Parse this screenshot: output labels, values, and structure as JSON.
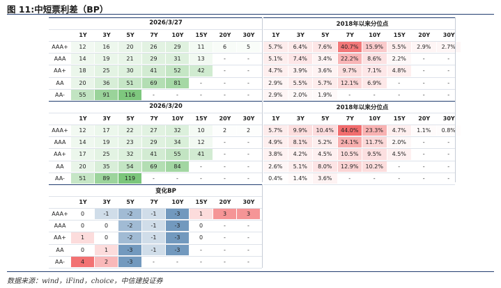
{
  "figure_title": "图 11:中短票利差（BP）",
  "source": "数据来源：wind，iFind，choice，中信建投证券",
  "columns": [
    "1Y",
    "3Y",
    "5Y",
    "7Y",
    "10Y",
    "15Y",
    "20Y",
    "30Y"
  ],
  "rows": [
    "AAA+",
    "AAA",
    "AA+",
    "AA",
    "AA-"
  ],
  "blocks": [
    {
      "date": "2026/3/27",
      "pct_title": "2018年以来分位点",
      "spreads": [
        [
          "12",
          "16",
          "20",
          "26",
          "29",
          "11",
          "6",
          "5"
        ],
        [
          "14",
          "19",
          "21",
          "29",
          "31",
          "13",
          "-",
          "-"
        ],
        [
          "18",
          "25",
          "30",
          "41",
          "52",
          "42",
          "-",
          "-"
        ],
        [
          "20",
          "36",
          "51",
          "69",
          "81",
          "-",
          "-",
          "-"
        ],
        [
          "55",
          "91",
          "116",
          "-",
          "-",
          "-",
          "-",
          "-"
        ]
      ],
      "percentiles": [
        [
          "5.7%",
          "6.4%",
          "7.6%",
          "40.7%",
          "15.9%",
          "5.5%",
          "2.9%",
          "2.7%"
        ],
        [
          "5.1%",
          "7.4%",
          "3.4%",
          "22.2%",
          "8.6%",
          "2.2%",
          "-",
          "-"
        ],
        [
          "4.7%",
          "3.9%",
          "3.6%",
          "9.7%",
          "7.1%",
          "4.8%",
          "-",
          "-"
        ],
        [
          "2.9%",
          "5.5%",
          "5.7%",
          "12.1%",
          "6.9%",
          "-",
          "-",
          "-"
        ],
        [
          "2.9%",
          "2.0%",
          "1.9%",
          "-",
          "-",
          "-",
          "-",
          "-"
        ]
      ]
    },
    {
      "date": "2026/3/20",
      "pct_title": "2018年以来分位点",
      "spreads": [
        [
          "12",
          "17",
          "22",
          "27",
          "32",
          "10",
          "2",
          "2"
        ],
        [
          "14",
          "19",
          "23",
          "29",
          "34",
          "12",
          "-",
          "-"
        ],
        [
          "17",
          "25",
          "32",
          "41",
          "55",
          "41",
          "-",
          "-"
        ],
        [
          "20",
          "35",
          "54",
          "69",
          "84",
          "-",
          "-",
          "-"
        ],
        [
          "51",
          "89",
          "119",
          "-",
          "-",
          "-",
          "-",
          "-"
        ]
      ],
      "percentiles": [
        [
          "5.7%",
          "9.9%",
          "10.4%",
          "44.0%",
          "23.3%",
          "4.7%",
          "1.1%",
          "0.8%"
        ],
        [
          "4.9%",
          "8.1%",
          "5.2%",
          "24.1%",
          "11.7%",
          "2.0%",
          "-",
          "-"
        ],
        [
          "3.8%",
          "4.2%",
          "4.5%",
          "10.5%",
          "9.5%",
          "4.5%",
          "-",
          "-"
        ],
        [
          "2.6%",
          "5.1%",
          "8.0%",
          "12.9%",
          "10.2%",
          "-",
          "-",
          "-"
        ],
        [
          "0.4%",
          "1.4%",
          "3.6%",
          "-",
          "-",
          "-",
          "-",
          "-"
        ]
      ]
    }
  ],
  "change": {
    "title": "变化BP",
    "values": [
      [
        "0",
        "-1",
        "-2",
        "-1",
        "-3",
        "1",
        "3",
        "3"
      ],
      [
        "0",
        "0",
        "-2",
        "-1",
        "-3",
        "0",
        "-",
        "-"
      ],
      [
        "1",
        "0",
        "-2",
        "-1",
        "-3",
        "0",
        "-",
        "-"
      ],
      [
        "0",
        "1",
        "-3",
        "-1",
        "-3",
        "-",
        "-",
        "-"
      ],
      [
        "4",
        "2",
        "-3",
        "-",
        "-",
        "-",
        "-",
        "-"
      ]
    ]
  },
  "colors": {
    "green_max": "#5cb85c",
    "red_max": "#f0595a",
    "blue_max": "#4f7fae",
    "rule": "#1f3b6e"
  }
}
